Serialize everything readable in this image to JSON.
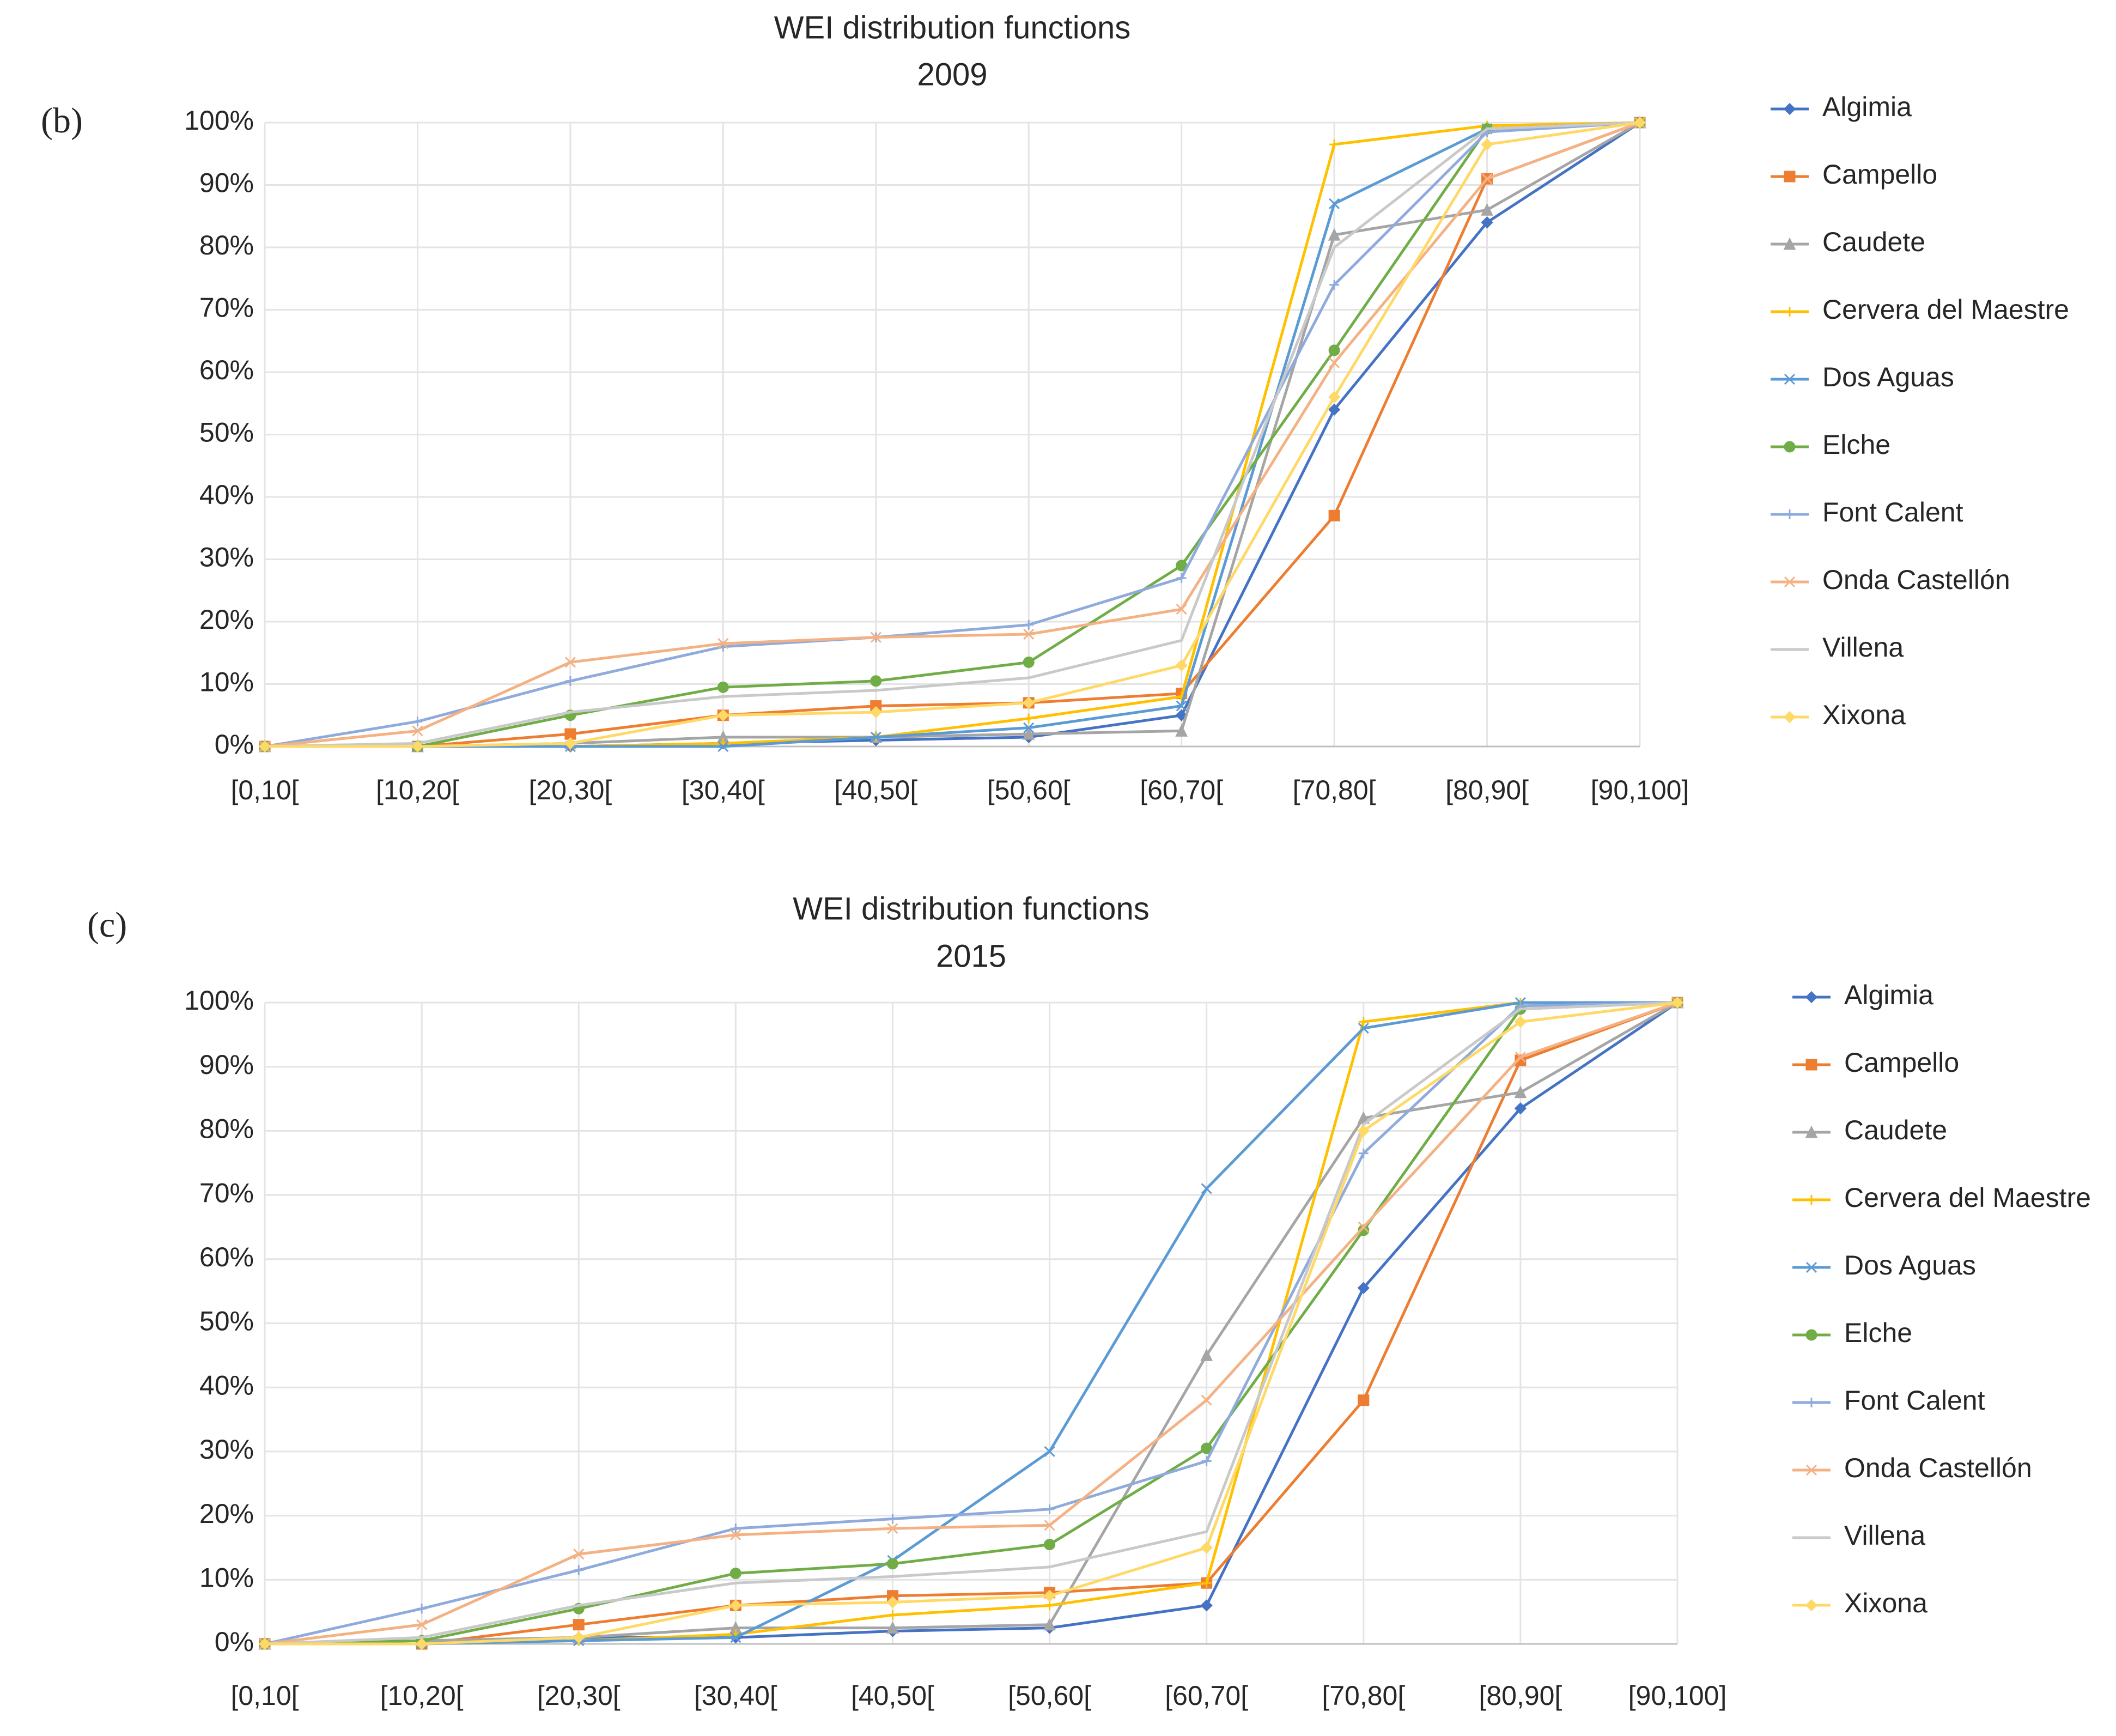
{
  "chart_data": [
    {
      "type": "line",
      "panel_label": "(b)",
      "title": "WEI distribution functions",
      "subtitle": "2009",
      "categories": [
        "[0,10[",
        "[10,20[",
        "[20,30[",
        "[30,40[",
        "[40,50[",
        "[50,60[",
        "[60,70[",
        "[70,80[",
        "[80,90[",
        "[90,100]"
      ],
      "ylim": [
        0,
        100
      ],
      "yticks": [
        {
          "value": 0,
          "label": "0%"
        },
        {
          "value": 10,
          "label": "10%"
        },
        {
          "value": 20,
          "label": "20%"
        },
        {
          "value": 30,
          "label": "30%"
        },
        {
          "value": 40,
          "label": "40%"
        },
        {
          "value": 50,
          "label": "50%"
        },
        {
          "value": 60,
          "label": "60%"
        },
        {
          "value": 70,
          "label": "70%"
        },
        {
          "value": 80,
          "label": "80%"
        },
        {
          "value": 90,
          "label": "90%"
        },
        {
          "value": 100,
          "label": "100%"
        }
      ],
      "grid": true,
      "legend": "right",
      "series": [
        {
          "name": "Algimia",
          "color": "#4472c4",
          "marker": "diamond",
          "values": [
            0,
            0,
            0,
            0.5,
            1,
            1.5,
            5,
            54,
            84,
            100
          ]
        },
        {
          "name": "Campello",
          "color": "#ed7d31",
          "marker": "square",
          "values": [
            0,
            0,
            2,
            5,
            6.5,
            7,
            8.5,
            37,
            91,
            100
          ]
        },
        {
          "name": "Caudete",
          "color": "#a5a5a5",
          "marker": "triangle",
          "values": [
            0,
            0,
            0.5,
            1.5,
            1.5,
            2,
            2.5,
            82,
            86,
            100
          ]
        },
        {
          "name": "Cervera del Maestre",
          "color": "#ffc000",
          "marker": "plus",
          "values": [
            0,
            0,
            0,
            0.5,
            1.5,
            4.5,
            8,
            96.5,
            99.5,
            100
          ]
        },
        {
          "name": "Dos Aguas",
          "color": "#5b9bd5",
          "marker": "cross",
          "values": [
            0,
            0,
            0,
            0,
            1.5,
            3,
            6.5,
            87,
            99,
            100
          ]
        },
        {
          "name": "Elche",
          "color": "#70ad47",
          "marker": "circle",
          "values": [
            0,
            0,
            5,
            9.5,
            10.5,
            13.5,
            29,
            63.5,
            99,
            100
          ]
        },
        {
          "name": "Font Calent",
          "color": "#8faadc",
          "marker": "plus",
          "values": [
            0,
            4,
            10.5,
            16,
            17.5,
            19.5,
            27,
            74,
            98.5,
            100
          ]
        },
        {
          "name": "Onda Castellón",
          "color": "#f4b183",
          "marker": "cross",
          "values": [
            0,
            2.5,
            13.5,
            16.5,
            17.5,
            18,
            22,
            61.5,
            91,
            100
          ]
        },
        {
          "name": "Villena",
          "color": "#c9c9c9",
          "marker": "none",
          "values": [
            0,
            0.5,
            5.5,
            8,
            9,
            11,
            17,
            80,
            99,
            100
          ]
        },
        {
          "name": "Xixona",
          "color": "#ffd966",
          "marker": "diamond",
          "values": [
            0,
            0,
            0.5,
            5,
            5.5,
            7,
            13,
            56,
            96.5,
            100
          ]
        }
      ]
    },
    {
      "type": "line",
      "panel_label": "(c)",
      "title": "WEI distribution functions",
      "subtitle": "2015",
      "categories": [
        "[0,10[",
        "[10,20[",
        "[20,30[",
        "[30,40[",
        "[40,50[",
        "[50,60[",
        "[60,70[",
        "[70,80[",
        "[80,90[",
        "[90,100]"
      ],
      "ylim": [
        0,
        100
      ],
      "yticks": [
        {
          "value": 0,
          "label": "0%"
        },
        {
          "value": 10,
          "label": "10%"
        },
        {
          "value": 20,
          "label": "20%"
        },
        {
          "value": 30,
          "label": "30%"
        },
        {
          "value": 40,
          "label": "40%"
        },
        {
          "value": 50,
          "label": "50%"
        },
        {
          "value": 60,
          "label": "60%"
        },
        {
          "value": 70,
          "label": "70%"
        },
        {
          "value": 80,
          "label": "80%"
        },
        {
          "value": 90,
          "label": "90%"
        },
        {
          "value": 100,
          "label": "100%"
        }
      ],
      "grid": true,
      "legend": "right",
      "series": [
        {
          "name": "Algimia",
          "color": "#4472c4",
          "marker": "diamond",
          "values": [
            0,
            0,
            1,
            1,
            2,
            2.5,
            6,
            55.5,
            83.5,
            100
          ]
        },
        {
          "name": "Campello",
          "color": "#ed7d31",
          "marker": "square",
          "values": [
            0,
            0,
            3,
            6,
            7.5,
            8,
            9.5,
            38,
            91,
            100
          ]
        },
        {
          "name": "Caudete",
          "color": "#a5a5a5",
          "marker": "triangle",
          "values": [
            0,
            0.5,
            1,
            2.5,
            2.5,
            3,
            45,
            82,
            86,
            100
          ]
        },
        {
          "name": "Cervera del Maestre",
          "color": "#ffc000",
          "marker": "plus",
          "values": [
            0,
            0,
            0.5,
            1.5,
            4.5,
            6,
            9.5,
            97,
            100,
            100
          ]
        },
        {
          "name": "Dos Aguas",
          "color": "#5b9bd5",
          "marker": "cross",
          "values": [
            0,
            0,
            0.5,
            1,
            13,
            30,
            71,
            96,
            100,
            100
          ]
        },
        {
          "name": "Elche",
          "color": "#70ad47",
          "marker": "circle",
          "values": [
            0,
            0.5,
            5.5,
            11,
            12.5,
            15.5,
            30.5,
            64.5,
            99,
            100
          ]
        },
        {
          "name": "Font Calent",
          "color": "#8faadc",
          "marker": "plus",
          "values": [
            0,
            5.5,
            11.5,
            18,
            19.5,
            21,
            28.5,
            76.5,
            99.5,
            100
          ]
        },
        {
          "name": "Onda Castellón",
          "color": "#f4b183",
          "marker": "cross",
          "values": [
            0,
            3,
            14,
            17,
            18,
            18.5,
            38,
            65,
            91.5,
            100
          ]
        },
        {
          "name": "Villena",
          "color": "#c9c9c9",
          "marker": "none",
          "values": [
            0,
            1,
            6,
            9.5,
            10.5,
            12,
            17.5,
            81,
            99,
            100
          ]
        },
        {
          "name": "Xixona",
          "color": "#ffd966",
          "marker": "diamond",
          "values": [
            0,
            0,
            1,
            6,
            6.5,
            7.5,
            15,
            80,
            97,
            100
          ]
        }
      ]
    }
  ]
}
